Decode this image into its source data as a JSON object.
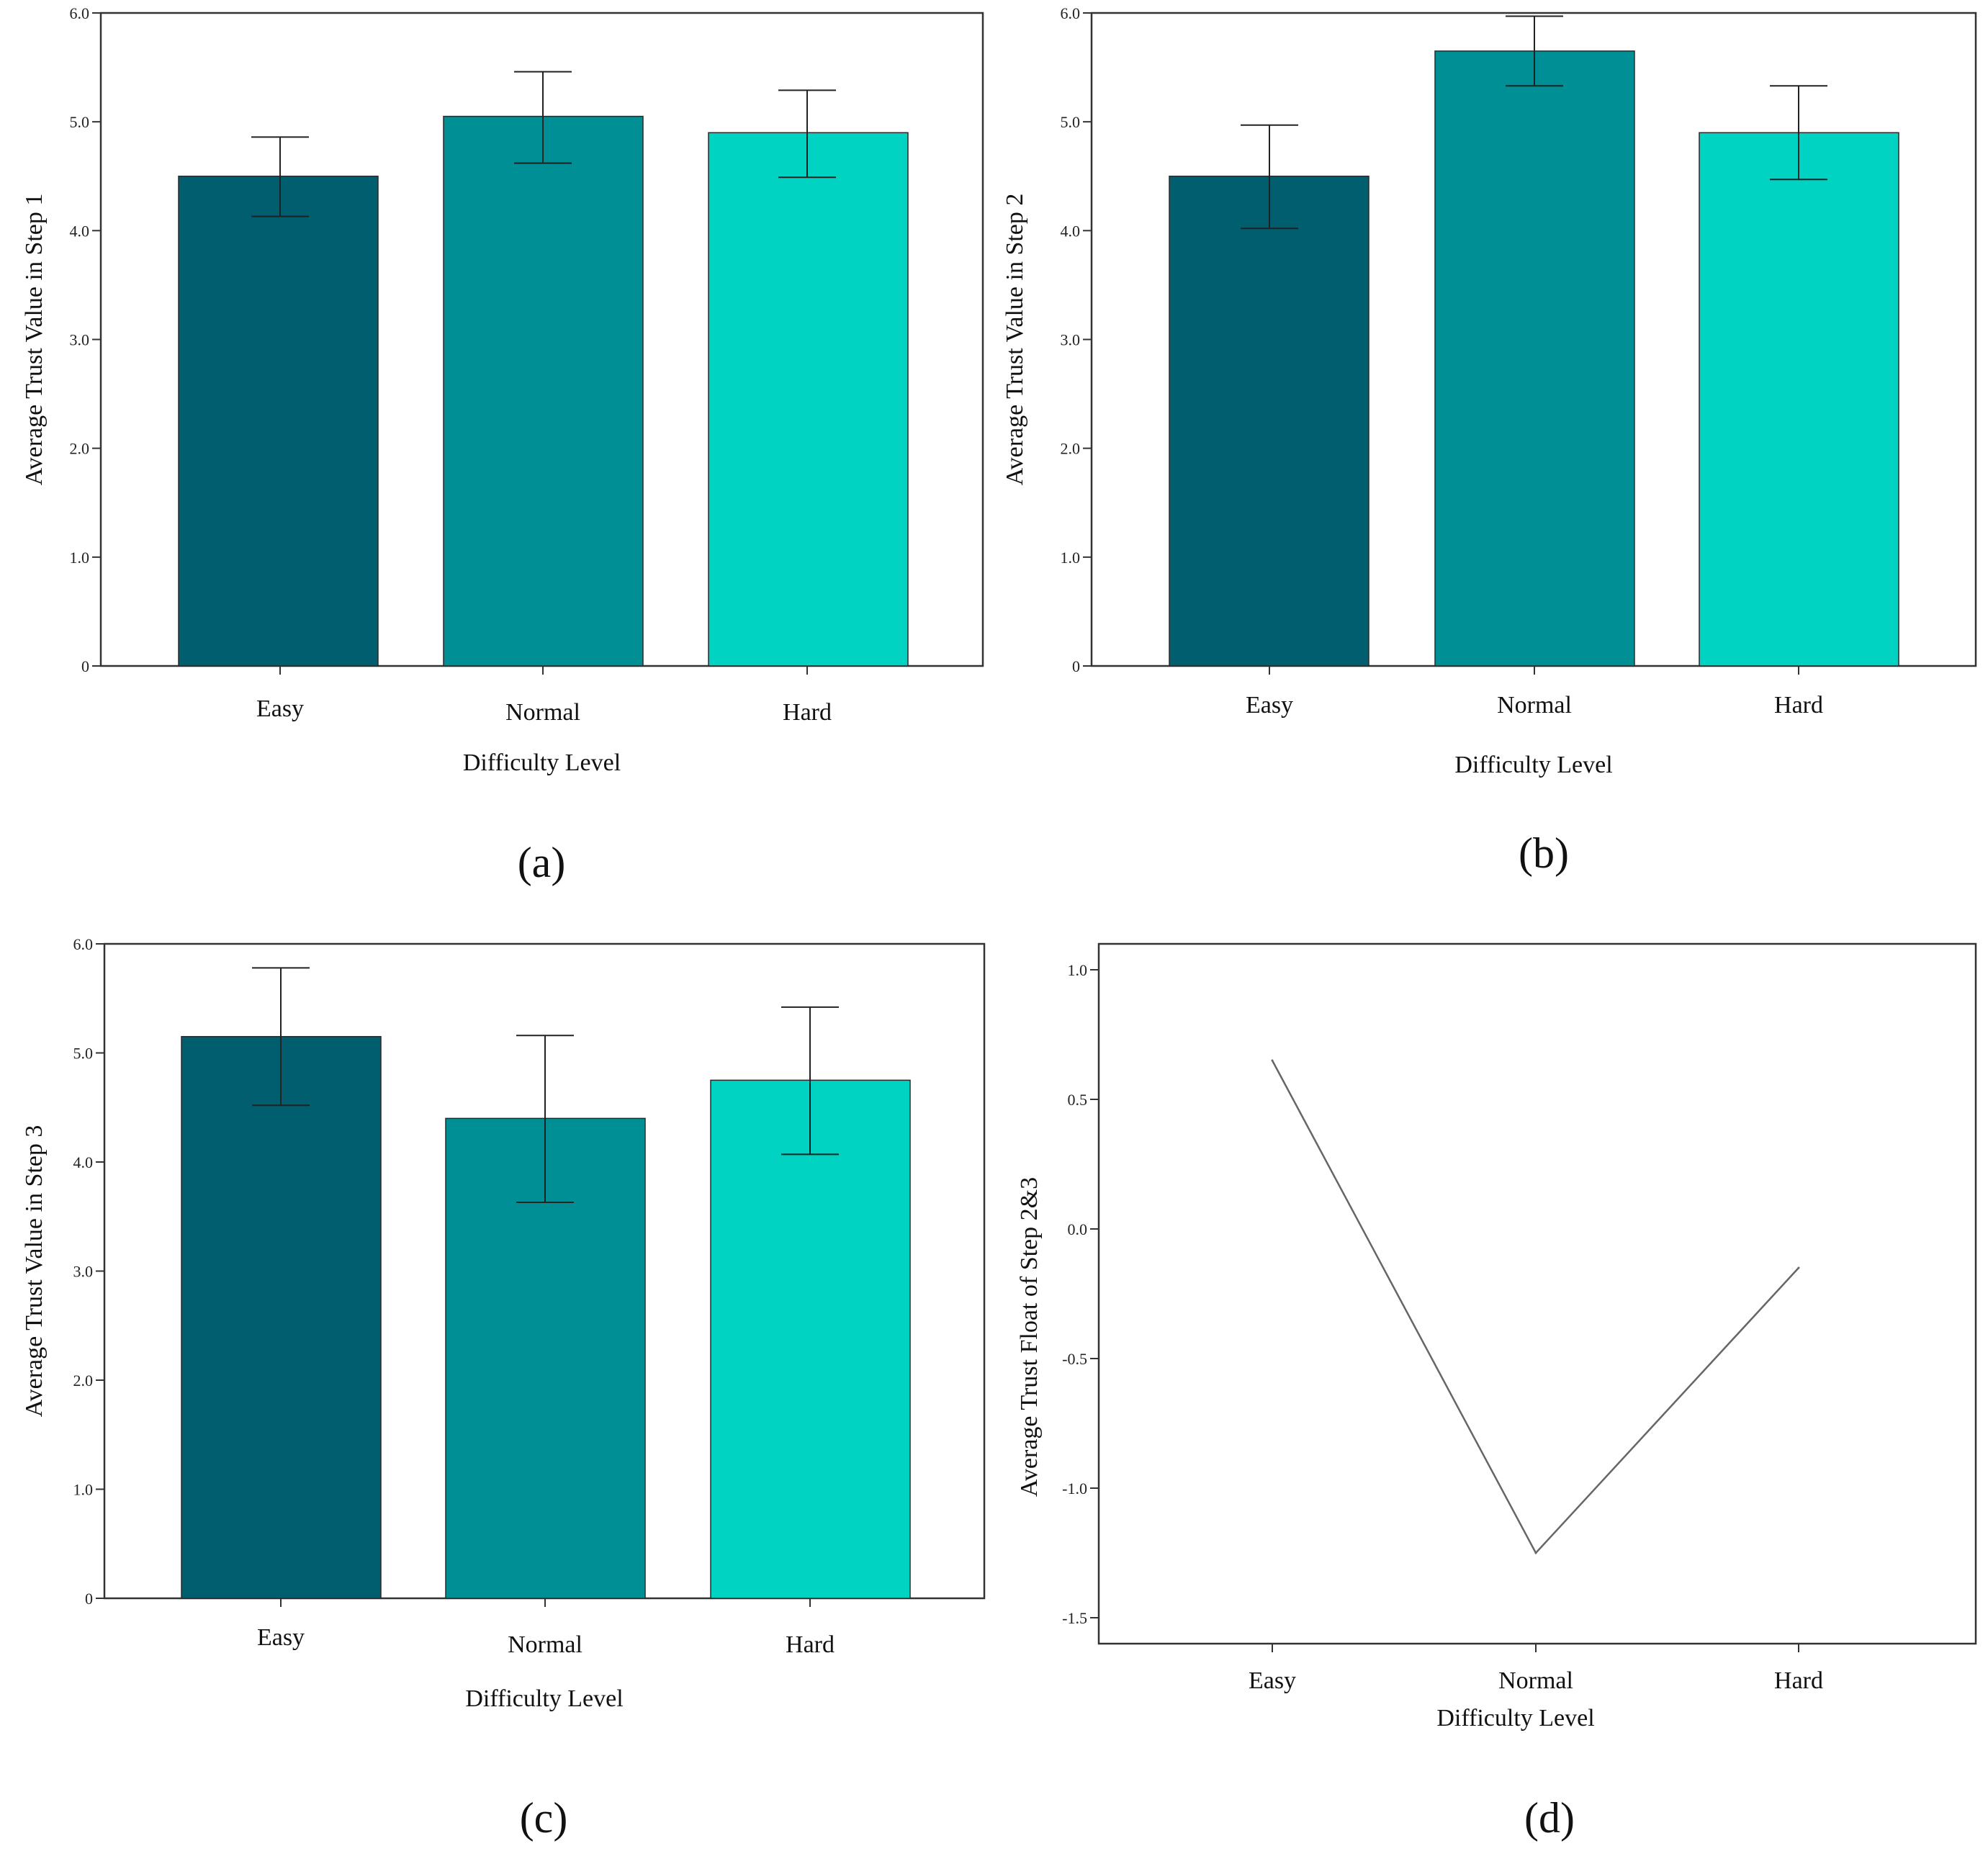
{
  "colors": {
    "easy": "#005e6e",
    "normal": "#008f94",
    "hard": "#00d3c2",
    "axis": "#333333",
    "line": "#666666"
  },
  "chart_data": [
    {
      "panel_label": "(a)",
      "type": "bar",
      "categories": [
        "Easy",
        "Normal",
        "Hard"
      ],
      "values": [
        4.5,
        5.05,
        4.9
      ],
      "error_low": [
        4.13,
        4.62,
        4.49
      ],
      "error_high": [
        4.86,
        5.46,
        5.29
      ],
      "xlabel": "Difficulty Level",
      "ylabel": "Average Trust Value in Step 1",
      "ylim": [
        0,
        6.0
      ],
      "yticks": [
        0,
        1.0,
        2.0,
        3.0,
        4.0,
        5.0,
        6.0
      ],
      "ytick_labels": [
        "0",
        "1.0",
        "2.0",
        "3.0",
        "4.0",
        "5.0",
        "6.0"
      ],
      "grid": false
    },
    {
      "panel_label": "(b)",
      "type": "bar",
      "categories": [
        "Easy",
        "Normal",
        "Hard"
      ],
      "values": [
        4.5,
        5.65,
        4.9
      ],
      "error_low": [
        4.02,
        5.33,
        4.47
      ],
      "error_high": [
        4.97,
        5.97,
        5.33
      ],
      "xlabel": "Difficulty Level",
      "ylabel": "Average Trust Value in Step 2",
      "ylim": [
        0,
        6.0
      ],
      "yticks": [
        0,
        1.0,
        2.0,
        3.0,
        4.0,
        5.0,
        6.0
      ],
      "ytick_labels": [
        "0",
        "1.0",
        "2.0",
        "3.0",
        "4.0",
        "5.0",
        "6.0"
      ],
      "grid": false
    },
    {
      "panel_label": "(c)",
      "type": "bar",
      "categories": [
        "Easy",
        "Normal",
        "Hard"
      ],
      "values": [
        5.15,
        4.4,
        4.75
      ],
      "error_low": [
        4.52,
        3.63,
        4.07
      ],
      "error_high": [
        5.78,
        5.16,
        5.42
      ],
      "xlabel": "Difficulty Level",
      "ylabel": "Average Trust Value in Step 3",
      "ylim": [
        0,
        6.0
      ],
      "yticks": [
        0,
        1.0,
        2.0,
        3.0,
        4.0,
        5.0,
        6.0
      ],
      "ytick_labels": [
        "0",
        "1.0",
        "2.0",
        "3.0",
        "4.0",
        "5.0",
        "6.0"
      ],
      "grid": false
    },
    {
      "panel_label": "(d)",
      "type": "line",
      "categories": [
        "Easy",
        "Normal",
        "Hard"
      ],
      "values": [
        0.65,
        -1.25,
        -0.15
      ],
      "xlabel": "Difficulty Level",
      "ylabel": "Average Trust Float of Step 2&3",
      "ylim": [
        -1.6,
        1.1
      ],
      "yticks": [
        1.0,
        0.5,
        0.0,
        -0.5,
        -1.0,
        -1.5
      ],
      "ytick_labels": [
        "1.0",
        "0.5",
        "0.0",
        "-0.5",
        "-1.0",
        "-1.5"
      ],
      "grid": false
    }
  ]
}
